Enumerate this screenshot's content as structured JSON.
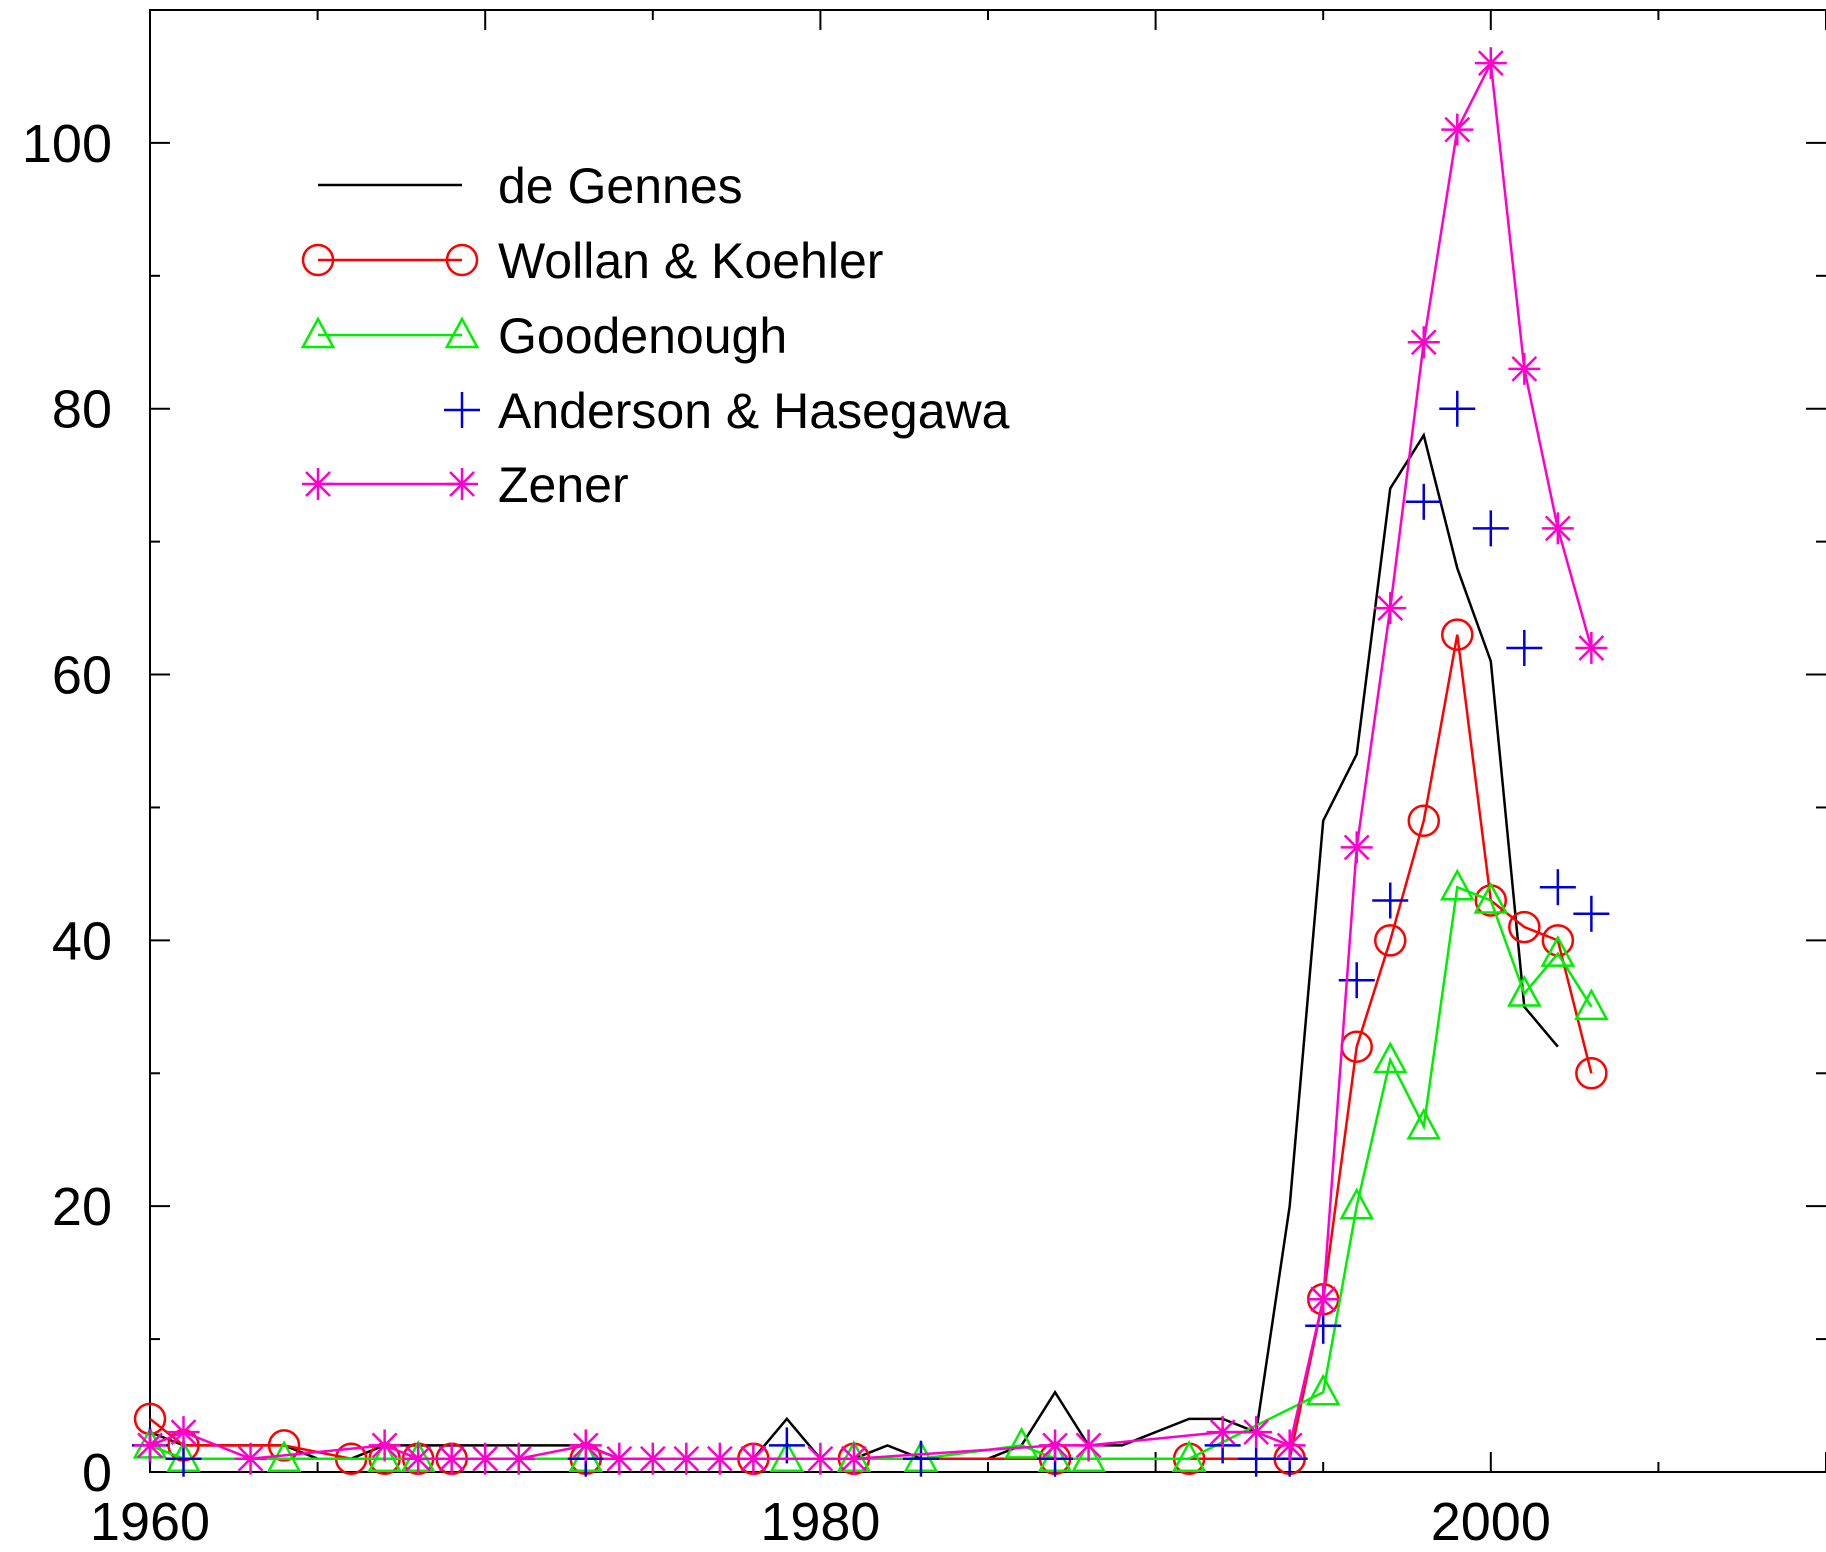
{
  "chart_data": {
    "type": "line",
    "title": "",
    "xlabel": "",
    "ylabel": "",
    "xlim": [
      1960,
      2010
    ],
    "ylim": [
      0,
      110
    ],
    "xticks": [
      1960,
      1980,
      2000
    ],
    "yticks": [
      0,
      20,
      40,
      60,
      80,
      100
    ],
    "grid": false,
    "legend_position": "top-left",
    "series": [
      {
        "name": "de Gennes",
        "color": "#000000",
        "marker": "none",
        "line": true,
        "x": [
          1960,
          1961,
          1962,
          1963,
          1964,
          1965,
          1966,
          1967,
          1968,
          1969,
          1970,
          1971,
          1972,
          1973,
          1974,
          1975,
          1976,
          1977,
          1978,
          1979,
          1980,
          1981,
          1982,
          1983,
          1984,
          1985,
          1986,
          1987,
          1988,
          1989,
          1990,
          1991,
          1992,
          1993,
          1994,
          1995,
          1996,
          1997,
          1998,
          1999,
          2000,
          2001,
          2002,
          2003
        ],
        "y": [
          3,
          2,
          2,
          2,
          2,
          1,
          1,
          2,
          2,
          2,
          2,
          2,
          2,
          2,
          1,
          1,
          1,
          1,
          1,
          4,
          1,
          1,
          2,
          1,
          1,
          1,
          2,
          6,
          2,
          2,
          3,
          4,
          4,
          3,
          20,
          49,
          54,
          74,
          78,
          68,
          61,
          35,
          32,
          null
        ]
      },
      {
        "name": "Wollan & Koehler",
        "color": "#ff0000",
        "marker": "circle",
        "line": true,
        "x": [
          1960,
          1961,
          1964,
          1966,
          1967,
          1968,
          1969,
          1973,
          1978,
          1981,
          1987,
          1991,
          1994,
          1995,
          1996,
          1997,
          1998,
          1999,
          2000,
          2001,
          2002,
          2003
        ],
        "y": [
          4,
          2,
          2,
          1,
          1,
          1,
          1,
          1,
          1,
          1,
          1,
          1,
          1,
          13,
          32,
          40,
          49,
          63,
          43,
          41,
          40,
          30
        ]
      },
      {
        "name": "Goodenough",
        "color": "#00ee00",
        "marker": "triangle",
        "line": true,
        "x": [
          1960,
          1961,
          1964,
          1967,
          1968,
          1973,
          1979,
          1981,
          1983,
          1986,
          1987,
          1988,
          1991,
          1995,
          1996,
          1997,
          1998,
          1999,
          2000,
          2001,
          2002,
          2003
        ],
        "y": [
          2,
          1,
          1,
          1,
          1,
          1,
          1,
          1,
          1,
          2,
          1,
          1,
          1,
          6,
          20,
          31,
          26,
          44,
          43,
          36,
          39,
          35
        ]
      },
      {
        "name": "Anderson & Hasegawa",
        "color": "#0000dd",
        "marker": "plus",
        "line": false,
        "x": [
          1960,
          1961,
          1973,
          1979,
          1983,
          1987,
          1992,
          1993,
          1994,
          1995,
          1996,
          1997,
          1998,
          1999,
          2000,
          2001,
          2002,
          2003
        ],
        "y": [
          2,
          1,
          1,
          2,
          1,
          1,
          2,
          1,
          1,
          11,
          37,
          43,
          73,
          80,
          71,
          62,
          44,
          42
        ]
      },
      {
        "name": "Zener",
        "color": "#ff00cc",
        "marker": "asterisk",
        "line": true,
        "x": [
          1960,
          1961,
          1963,
          1967,
          1968,
          1969,
          1970,
          1971,
          1973,
          1974,
          1975,
          1976,
          1977,
          1978,
          1980,
          1981,
          1987,
          1988,
          1992,
          1993,
          1994,
          1995,
          1996,
          1997,
          1998,
          1999,
          2000,
          2001,
          2002,
          2003
        ],
        "y": [
          2,
          3,
          1,
          2,
          1,
          1,
          1,
          1,
          2,
          1,
          1,
          1,
          1,
          1,
          1,
          1,
          2,
          2,
          3,
          3,
          2,
          13,
          47,
          65,
          85,
          101,
          106,
          83,
          71,
          62
        ]
      }
    ]
  }
}
